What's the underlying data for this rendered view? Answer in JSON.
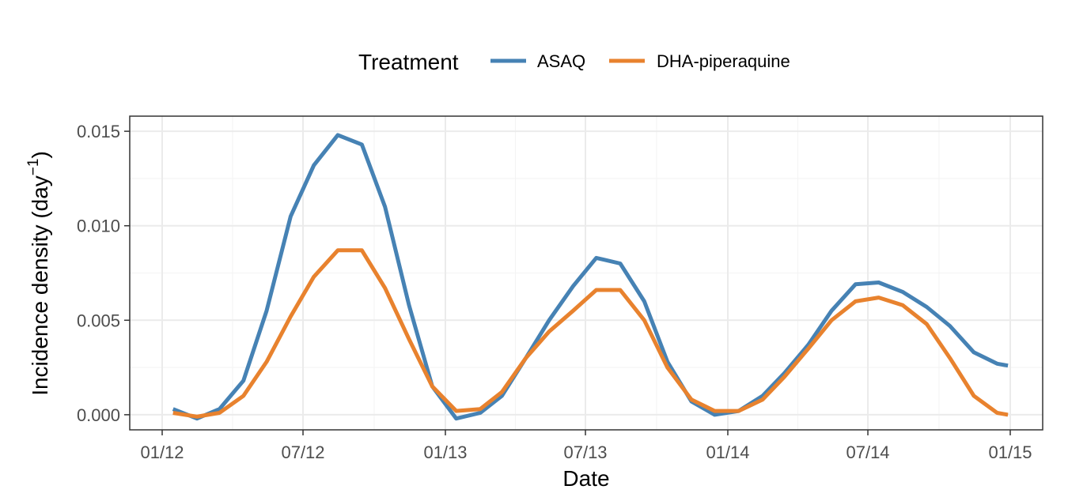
{
  "chart_data": {
    "type": "line",
    "xlabel": "Date",
    "ylabel": "Incidence density (day",
    "ylabel_sup": "−1",
    "ylabel_close": ")",
    "legend_title": "Treatment",
    "legend_position": "top",
    "grid": true,
    "ylim": [
      -0.0008,
      0.0158
    ],
    "x_ticks": [
      "2012-01-01",
      "2012-07-01",
      "2013-01-01",
      "2013-07-01",
      "2014-01-01",
      "2014-07-01",
      "2015-01-01"
    ],
    "x_tick_labels": [
      "01/12",
      "07/12",
      "01/13",
      "07/13",
      "01/14",
      "07/14",
      "01/15"
    ],
    "y_ticks": [
      0.0,
      0.005,
      0.01,
      0.015
    ],
    "y_tick_labels": [
      "0.000",
      "0.005",
      "0.010",
      "0.015"
    ],
    "x": [
      "2012-01-15",
      "2012-02-15",
      "2012-03-15",
      "2012-04-15",
      "2012-05-15",
      "2012-06-15",
      "2012-07-15",
      "2012-08-15",
      "2012-09-15",
      "2012-10-15",
      "2012-11-15",
      "2012-12-15",
      "2013-01-15",
      "2013-02-15",
      "2013-03-15",
      "2013-04-15",
      "2013-05-15",
      "2013-06-15",
      "2013-07-15",
      "2013-08-15",
      "2013-09-15",
      "2013-10-15",
      "2013-11-15",
      "2013-12-15",
      "2014-01-15",
      "2014-02-15",
      "2014-03-15",
      "2014-04-15",
      "2014-05-15",
      "2014-06-15",
      "2014-07-15",
      "2014-08-15",
      "2014-09-15",
      "2014-10-15",
      "2014-11-15",
      "2014-12-15",
      "2014-12-29"
    ],
    "series": [
      {
        "name": "ASAQ",
        "color": "#4682b4",
        "values": [
          0.0003,
          -0.0002,
          0.0003,
          0.0018,
          0.0055,
          0.0105,
          0.0132,
          0.0148,
          0.0143,
          0.011,
          0.0058,
          0.0015,
          -0.0002,
          0.0001,
          0.001,
          0.003,
          0.005,
          0.0068,
          0.0083,
          0.008,
          0.006,
          0.0028,
          0.0007,
          0.0,
          0.0002,
          0.001,
          0.0022,
          0.0037,
          0.0055,
          0.0069,
          0.007,
          0.0065,
          0.0057,
          0.0047,
          0.0033,
          0.0027,
          0.0026
        ]
      },
      {
        "name": "DHA-piperaquine",
        "color": "#e8822e",
        "values": [
          0.0001,
          -0.0001,
          0.0001,
          0.001,
          0.0028,
          0.0052,
          0.0073,
          0.0087,
          0.0087,
          0.0067,
          0.004,
          0.0015,
          0.0002,
          0.0003,
          0.0012,
          0.003,
          0.0044,
          0.0055,
          0.0066,
          0.0066,
          0.005,
          0.0025,
          0.0008,
          0.0002,
          0.0002,
          0.0008,
          0.002,
          0.0035,
          0.005,
          0.006,
          0.0062,
          0.0058,
          0.0048,
          0.003,
          0.001,
          0.0001,
          0.0
        ]
      }
    ]
  }
}
